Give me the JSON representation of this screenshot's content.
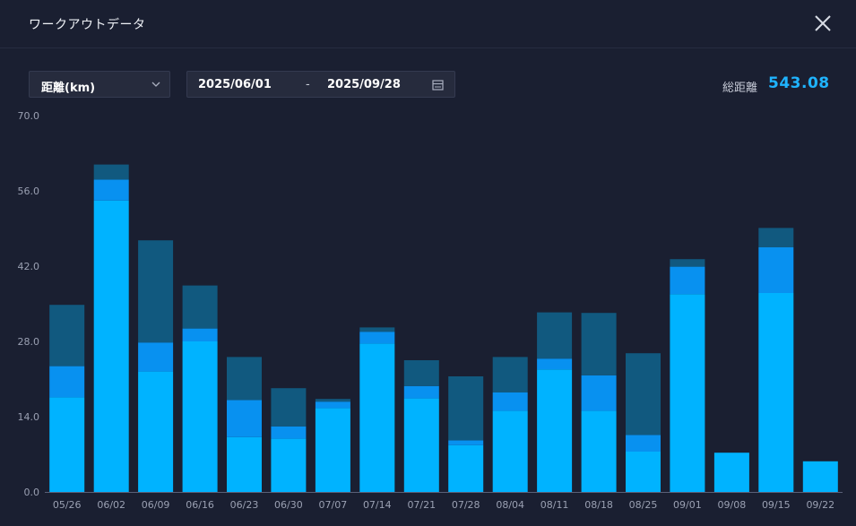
{
  "window": {
    "title": "ワークアウトデータ"
  },
  "toolbar": {
    "metric": "距離(km)",
    "date_start": "2025/06/01",
    "date_separator": "-",
    "date_end": "2025/09/28",
    "total_label": "総距離",
    "total_value": "543.08"
  },
  "colors": {
    "dark": "#11597f",
    "mid": "#0891f0",
    "light": "#00b3ff",
    "accent": "#1fb4ff"
  },
  "icons": {
    "close": "close-icon",
    "chevron": "chevron-down-icon",
    "calendar": "calendar-icon"
  },
  "chart_data": {
    "type": "bar",
    "stacked": true,
    "ylim": [
      0,
      70
    ],
    "yticks": [
      "0.0",
      "14.0",
      "28.0",
      "42.0",
      "56.0",
      "70.0"
    ],
    "grid": false,
    "categories": [
      "05/26",
      "06/02",
      "06/09",
      "06/16",
      "06/23",
      "06/30",
      "07/07",
      "07/14",
      "07/21",
      "07/28",
      "08/04",
      "08/11",
      "08/18",
      "08/25",
      "09/01",
      "09/08",
      "09/15",
      "09/22"
    ],
    "series": [
      {
        "color": "#00b3ff",
        "values": [
          17.6,
          54.2,
          22.4,
          28.0,
          10.2,
          9.9,
          15.6,
          27.6,
          17.4,
          8.7,
          15.1,
          22.8,
          15.1,
          7.5,
          36.8,
          7.3,
          37.0,
          5.7
        ]
      },
      {
        "color": "#0891f0",
        "values": [
          5.8,
          3.9,
          5.4,
          2.4,
          6.9,
          2.3,
          1.2,
          2.2,
          2.3,
          0.9,
          3.4,
          2.0,
          6.6,
          3.1,
          5.1,
          0.0,
          8.5,
          0.0
        ]
      },
      {
        "color": "#11597f",
        "values": [
          11.4,
          2.8,
          19.0,
          8.0,
          8.0,
          7.1,
          0.5,
          0.8,
          4.8,
          11.9,
          6.6,
          8.6,
          11.6,
          15.2,
          1.4,
          0.0,
          3.6,
          0.0
        ]
      }
    ]
  }
}
